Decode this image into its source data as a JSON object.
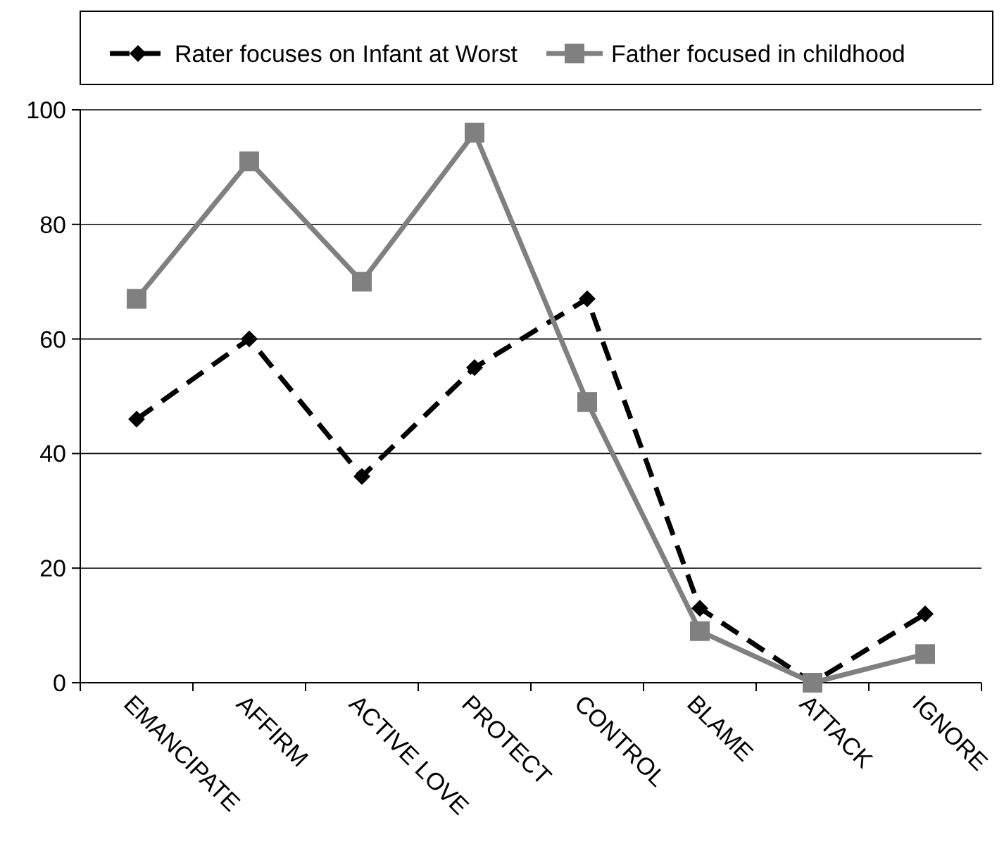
{
  "chart_data": {
    "type": "line",
    "categories": [
      "EMANCIPATE",
      "AFFIRM",
      "ACTIVE LOVE",
      "PROTECT",
      "CONTROL",
      "BLAME",
      "ATTACK",
      "IGNORE"
    ],
    "series": [
      {
        "name": "Rater focuses on Infant at Worst",
        "color": "#000000",
        "marker": "diamond",
        "line_style": "dashed",
        "values": [
          46,
          60,
          36,
          55,
          67,
          13,
          0,
          12
        ]
      },
      {
        "name": "Father focused in childhood",
        "color": "#808080",
        "marker": "square",
        "line_style": "solid",
        "values": [
          67,
          91,
          70,
          96,
          49,
          9,
          0,
          5
        ]
      }
    ],
    "ylim": [
      0,
      100
    ],
    "yticks": [
      0,
      20,
      40,
      60,
      80,
      100
    ],
    "grid": "y",
    "legend": "top"
  }
}
